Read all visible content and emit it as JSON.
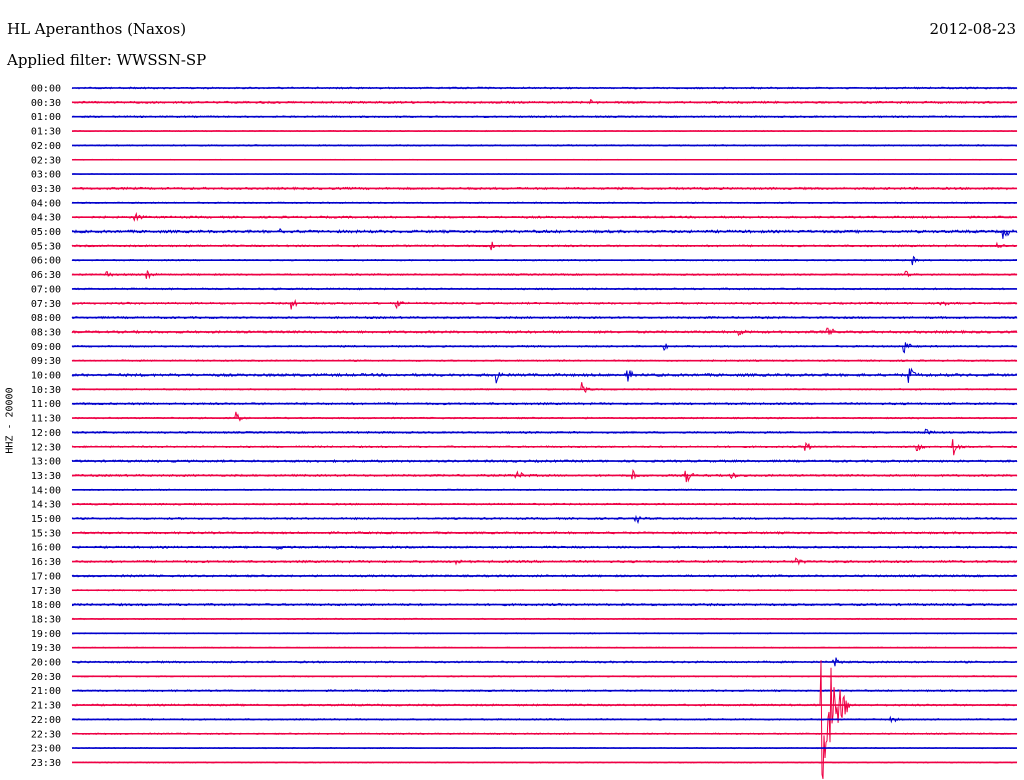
{
  "header": {
    "station": "HL Aperanthos (Naxos)",
    "date": "2012-08-23",
    "filter": "Applied filter: WWSSN-SP"
  },
  "channel_label": "HHZ - 20000",
  "colors": {
    "blue": "#0000cc",
    "red": "#ee0044"
  },
  "chart_data": {
    "type": "line",
    "title": "HL Aperanthos (Naxos)",
    "subtitle": "Applied filter: WWSSN-SP",
    "ylabel": "HHZ - 20000",
    "xlabel": "",
    "tick_labels": [
      "00:00",
      "00:30",
      "01:00",
      "01:30",
      "02:00",
      "02:30",
      "03:00",
      "03:30",
      "04:00",
      "04:30",
      "05:00",
      "05:30",
      "06:00",
      "06:30",
      "07:00",
      "07:30",
      "08:00",
      "08:30",
      "09:00",
      "09:30",
      "10:00",
      "10:30",
      "11:00",
      "11:30",
      "12:00",
      "12:30",
      "13:00",
      "13:30",
      "14:00",
      "14:30",
      "15:00",
      "15:30",
      "16:00",
      "16:30",
      "17:00",
      "17:30",
      "18:00",
      "18:30",
      "19:00",
      "19:30",
      "20:00",
      "20:30",
      "21:00",
      "21:30",
      "22:00",
      "22:30",
      "23:00",
      "23:30"
    ],
    "trace_minutes": 30,
    "trace_colors": [
      "blue",
      "red"
    ],
    "noise_level": [
      1.0,
      1.2,
      1.0,
      0.6,
      0.8,
      0.4,
      0.4,
      1.3,
      0.8,
      1.2,
      1.6,
      1.1,
      0.8,
      1.0,
      1.0,
      1.1,
      1.2,
      1.4,
      1.0,
      0.9,
      1.6,
      0.8,
      1.2,
      0.9,
      1.1,
      1.0,
      1.3,
      1.2,
      0.8,
      1.0,
      1.1,
      1.2,
      1.2,
      1.3,
      1.2,
      0.7,
      1.3,
      0.7,
      0.6,
      0.6,
      1.1,
      0.7,
      1.0,
      1.1,
      0.9,
      0.8,
      0.6,
      0.6
    ],
    "events": [
      {
        "trace": 1,
        "minute": 16.5,
        "amp": 3
      },
      {
        "trace": 9,
        "minute": 2.0,
        "amp": 5
      },
      {
        "trace": 10,
        "minute": 6.5,
        "amp": 7
      },
      {
        "trace": 10,
        "minute": 29.6,
        "amp": 7
      },
      {
        "trace": 11,
        "minute": 13.3,
        "amp": 5
      },
      {
        "trace": 11,
        "minute": 29.4,
        "amp": 5
      },
      {
        "trace": 12,
        "minute": 26.7,
        "amp": 6
      },
      {
        "trace": 13,
        "minute": 1.1,
        "amp": 5
      },
      {
        "trace": 13,
        "minute": 2.4,
        "amp": 7
      },
      {
        "trace": 13,
        "minute": 26.5,
        "amp": 4
      },
      {
        "trace": 15,
        "minute": 7.0,
        "amp": 7
      },
      {
        "trace": 15,
        "minute": 10.3,
        "amp": 5
      },
      {
        "trace": 15,
        "minute": 27.6,
        "amp": 6
      },
      {
        "trace": 17,
        "minute": 21.2,
        "amp": 5
      },
      {
        "trace": 17,
        "minute": 24.0,
        "amp": 6
      },
      {
        "trace": 18,
        "minute": 18.8,
        "amp": 4
      },
      {
        "trace": 18,
        "minute": 26.4,
        "amp": 9
      },
      {
        "trace": 20,
        "minute": 13.5,
        "amp": 8
      },
      {
        "trace": 20,
        "minute": 17.6,
        "amp": 9
      },
      {
        "trace": 20,
        "minute": 26.6,
        "amp": 9
      },
      {
        "trace": 21,
        "minute": 16.2,
        "amp": 9
      },
      {
        "trace": 23,
        "minute": 5.2,
        "amp": 7
      },
      {
        "trace": 24,
        "minute": 27.1,
        "amp": 5
      },
      {
        "trace": 25,
        "minute": 23.3,
        "amp": 8
      },
      {
        "trace": 25,
        "minute": 26.8,
        "amp": 6
      },
      {
        "trace": 25,
        "minute": 28.0,
        "amp": 8
      },
      {
        "trace": 27,
        "minute": 14.1,
        "amp": 9
      },
      {
        "trace": 27,
        "minute": 17.8,
        "amp": 7
      },
      {
        "trace": 27,
        "minute": 19.5,
        "amp": 9
      },
      {
        "trace": 27,
        "minute": 20.9,
        "amp": 6
      },
      {
        "trace": 30,
        "minute": 11.0,
        "amp": 4
      },
      {
        "trace": 30,
        "minute": 17.9,
        "amp": 6
      },
      {
        "trace": 32,
        "minute": 6.5,
        "amp": 5
      },
      {
        "trace": 33,
        "minute": 12.2,
        "amp": 4
      },
      {
        "trace": 33,
        "minute": 23.0,
        "amp": 7
      },
      {
        "trace": 40,
        "minute": 24.2,
        "amp": 6
      },
      {
        "trace": 43,
        "minute": 23.8,
        "amp": 90
      },
      {
        "trace": 44,
        "minute": 26.0,
        "amp": 4
      }
    ]
  }
}
